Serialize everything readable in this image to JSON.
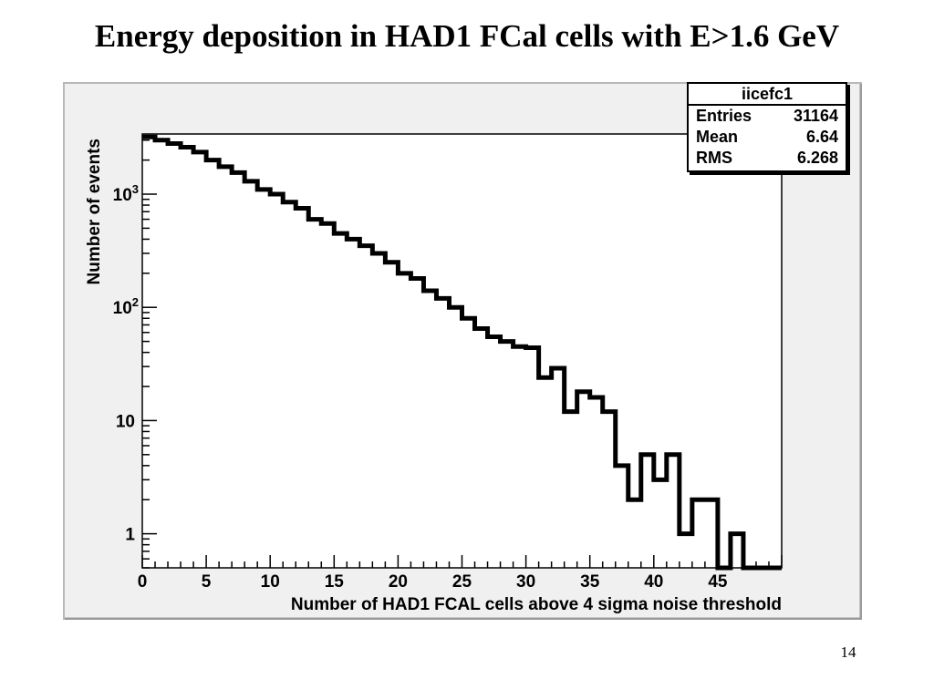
{
  "slide": {
    "title": "Energy deposition in HAD1 FCal cells with E>1.6 GeV",
    "page_number": "14"
  },
  "stats": {
    "name": "iicefc1",
    "rows": [
      {
        "label": "Entries",
        "value": "31164"
      },
      {
        "label": "Mean",
        "value": "6.64"
      },
      {
        "label": "RMS",
        "value": "6.268"
      }
    ]
  },
  "chart_data": {
    "type": "histogram",
    "xlabel": "Number of HAD1 FCAL cells above 4 sigma noise threshold",
    "ylabel": "Number of events",
    "xlim": [
      0,
      50
    ],
    "ylim": [
      0.5,
      3400
    ],
    "yscale": "log",
    "xticks": [
      "0",
      "5",
      "10",
      "15",
      "20",
      "25",
      "30",
      "35",
      "40",
      "45"
    ],
    "yticks": [
      {
        "value": 1000,
        "label": "10",
        "sup": "3"
      },
      {
        "value": 100,
        "label": "10",
        "sup": "2"
      },
      {
        "value": 10,
        "label": "10",
        "sup": ""
      },
      {
        "value": 1,
        "label": "1",
        "sup": ""
      }
    ],
    "bin_width": 1,
    "values": [
      3200,
      3000,
      2800,
      2600,
      2350,
      2000,
      1750,
      1550,
      1300,
      1100,
      1000,
      850,
      750,
      600,
      550,
      450,
      400,
      350,
      300,
      250,
      200,
      180,
      140,
      120,
      100,
      80,
      65,
      55,
      50,
      45,
      44,
      24,
      29,
      12,
      18,
      16,
      12,
      4,
      2,
      5,
      3,
      5,
      1,
      2,
      2,
      0.5,
      1,
      0.5,
      0.5,
      0
    ],
    "color": "#000000",
    "frame_bg": "#f0f0f0",
    "pad_bg": "#ffffff"
  }
}
